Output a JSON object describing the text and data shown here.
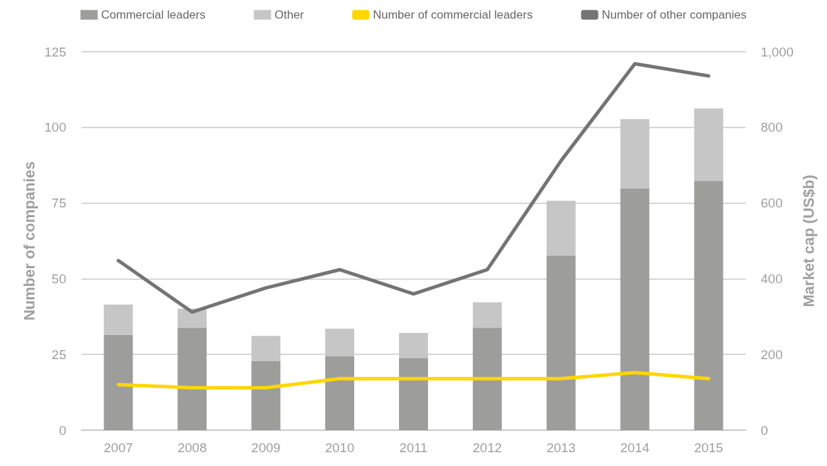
{
  "chart_data": {
    "type": "bar",
    "ylabel": "Number of companies",
    "y2label": "Market cap (US$b)",
    "categories": [
      "2007",
      "2008",
      "2009",
      "2010",
      "2011",
      "2012",
      "2013",
      "2014",
      "2015"
    ],
    "stacked": true,
    "series": [
      {
        "name": "Commercial leaders",
        "axis": "y2",
        "color": "#9d9d9c",
        "values": [
          252,
          271,
          183,
          195,
          191,
          271,
          461,
          639,
          659
        ]
      },
      {
        "name": "Other",
        "axis": "y2",
        "color": "#c6c6c6",
        "values": [
          80,
          50,
          66,
          73,
          66,
          67,
          145,
          183,
          191
        ]
      },
      {
        "name": "Number of commercial leaders",
        "type": "line",
        "axis": "y",
        "color": "#ffd700",
        "values": [
          15,
          14,
          14,
          17,
          17,
          17,
          17,
          19,
          17
        ]
      },
      {
        "name": "Number of other companies",
        "type": "line",
        "axis": "y",
        "color": "#747474",
        "values": [
          56,
          39,
          47,
          53,
          45,
          53,
          89,
          121,
          117
        ]
      }
    ],
    "ylim": [
      0,
      125
    ],
    "yticks": [
      0,
      25,
      50,
      75,
      100,
      125
    ],
    "y2lim": [
      0,
      1000
    ],
    "y2ticks": [
      0,
      200,
      400,
      600,
      800,
      {
        "value": 1000,
        "label": "1,000"
      }
    ],
    "grid": "y",
    "legend": "top",
    "marker": "none",
    "line_style": "solid"
  }
}
